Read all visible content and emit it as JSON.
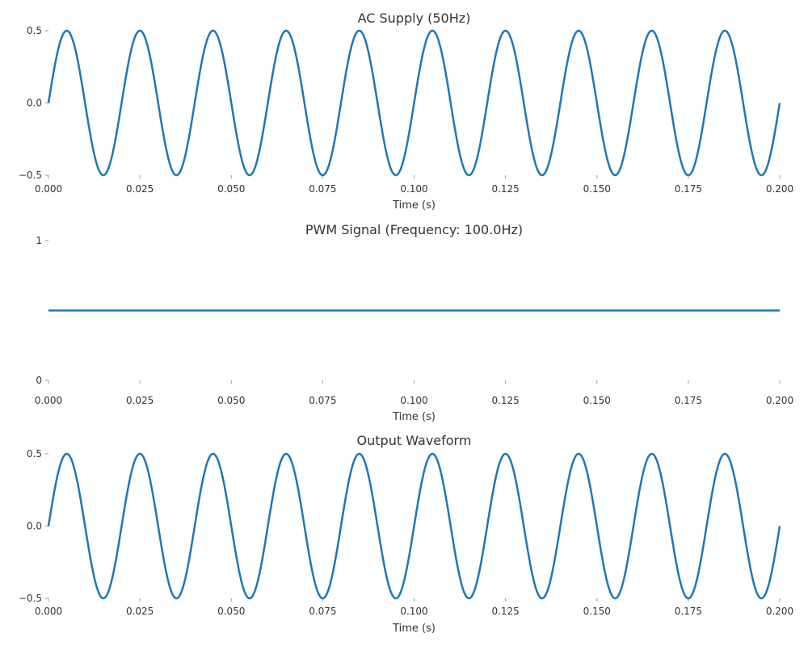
{
  "colors": {
    "line": "#1f77b4",
    "text": "#333333"
  },
  "chart_data": [
    {
      "type": "line",
      "title": "AC Supply (50Hz)",
      "xlabel": "Time (s)",
      "ylabel": "",
      "xlim": [
        0,
        0.2
      ],
      "ylim": [
        -0.5,
        0.5
      ],
      "x_ticks": [
        "0.000",
        "0.025",
        "0.050",
        "0.075",
        "0.100",
        "0.125",
        "0.150",
        "0.175",
        "0.200"
      ],
      "y_ticks": [
        0.5,
        0.0,
        -0.5
      ],
      "y_tick_labels": [
        "0.5",
        "0.0",
        "−0.5"
      ],
      "grid": false,
      "series": [
        {
          "function": "0.5*sin(2*pi*50*t)",
          "t_range": [
            0,
            0.2
          ],
          "frequency_hz": 50,
          "amplitude": 0.5
        }
      ]
    },
    {
      "type": "line",
      "title": "PWM Signal (Frequency: 100.0Hz)",
      "xlabel": "Time (s)",
      "ylabel": "",
      "xlim": [
        0,
        0.2
      ],
      "ylim": [
        0,
        1
      ],
      "x_ticks": [
        "0.000",
        "0.025",
        "0.050",
        "0.075",
        "0.100",
        "0.125",
        "0.150",
        "0.175",
        "0.200"
      ],
      "y_ticks": [
        1,
        0
      ],
      "y_tick_labels": [
        "1",
        "0"
      ],
      "grid": false,
      "series": [
        {
          "x": [
            0,
            0.2
          ],
          "values": [
            0.5,
            0.5
          ]
        }
      ]
    },
    {
      "type": "line",
      "title": "Output Waveform",
      "xlabel": "Time (s)",
      "ylabel": "",
      "xlim": [
        0,
        0.2
      ],
      "ylim": [
        -0.5,
        0.5
      ],
      "x_ticks": [
        "0.000",
        "0.025",
        "0.050",
        "0.075",
        "0.100",
        "0.125",
        "0.150",
        "0.175",
        "0.200"
      ],
      "y_ticks": [
        0.5,
        0.0,
        -0.5
      ],
      "y_tick_labels": [
        "0.5",
        "0.0",
        "−0.5"
      ],
      "grid": false,
      "series": [
        {
          "function": "0.5*sin(2*pi*50*t)",
          "t_range": [
            0,
            0.2
          ],
          "frequency_hz": 50,
          "amplitude": 0.5
        }
      ]
    }
  ]
}
